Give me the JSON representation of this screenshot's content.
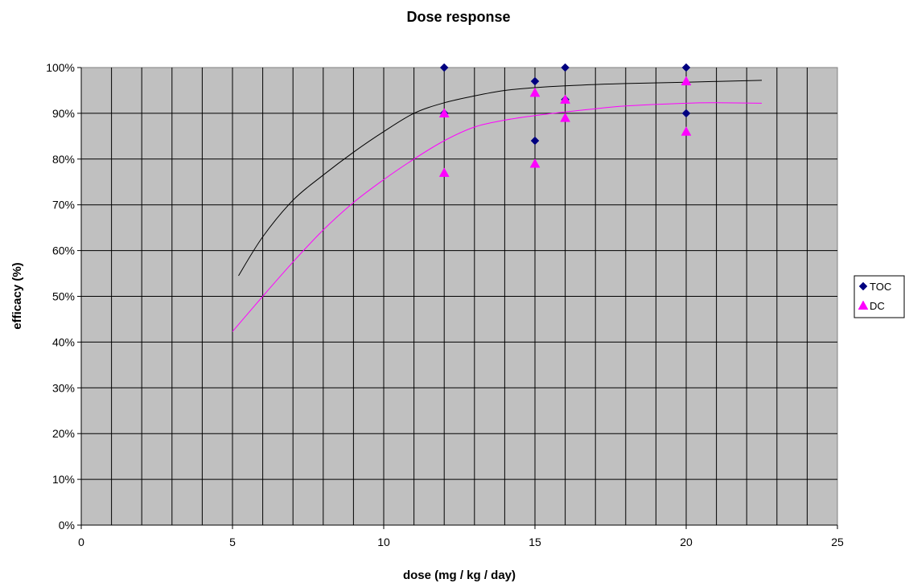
{
  "chart_data": {
    "type": "scatter",
    "title": "Dose response",
    "xlabel": "dose (mg / kg / day)",
    "ylabel": "efficacy (%)",
    "xlim": [
      0,
      25
    ],
    "ylim": [
      0,
      100
    ],
    "x_ticks": [
      0,
      5,
      10,
      15,
      20,
      25
    ],
    "y_ticks": [
      "0%",
      "10%",
      "20%",
      "30%",
      "40%",
      "50%",
      "60%",
      "70%",
      "80%",
      "90%",
      "100%"
    ],
    "grid": true,
    "legend_position": "right",
    "background_color": "#c0c0c0",
    "series": [
      {
        "name": "TOC",
        "marker": "diamond",
        "color": "#000080",
        "points": [
          {
            "x": 12,
            "y": 100
          },
          {
            "x": 12,
            "y": 90
          },
          {
            "x": 15,
            "y": 97
          },
          {
            "x": 15,
            "y": 84
          },
          {
            "x": 16,
            "y": 100
          },
          {
            "x": 16,
            "y": 93
          },
          {
            "x": 20,
            "y": 100
          },
          {
            "x": 20,
            "y": 90
          }
        ],
        "trend": {
          "color": "#000000",
          "points": [
            {
              "x": 5.2,
              "y": 54.5
            },
            {
              "x": 6,
              "y": 63
            },
            {
              "x": 7,
              "y": 71
            },
            {
              "x": 8,
              "y": 76.5
            },
            {
              "x": 9,
              "y": 81.5
            },
            {
              "x": 10,
              "y": 86
            },
            {
              "x": 11,
              "y": 90
            },
            {
              "x": 12,
              "y": 92.3
            },
            {
              "x": 13,
              "y": 93.8
            },
            {
              "x": 14,
              "y": 95
            },
            {
              "x": 15,
              "y": 95.6
            },
            {
              "x": 16,
              "y": 96
            },
            {
              "x": 17,
              "y": 96.3
            },
            {
              "x": 18,
              "y": 96.5
            },
            {
              "x": 20,
              "y": 96.8
            },
            {
              "x": 22.5,
              "y": 97.2
            }
          ]
        }
      },
      {
        "name": "DC",
        "marker": "triangle",
        "color": "#ff00ff",
        "points": [
          {
            "x": 12,
            "y": 90
          },
          {
            "x": 12,
            "y": 77
          },
          {
            "x": 15,
            "y": 94.5
          },
          {
            "x": 15,
            "y": 79
          },
          {
            "x": 16,
            "y": 93
          },
          {
            "x": 16,
            "y": 89
          },
          {
            "x": 20,
            "y": 97
          },
          {
            "x": 20,
            "y": 86
          }
        ],
        "trend": {
          "color": "#ff00ff",
          "points": [
            {
              "x": 5,
              "y": 42.3
            },
            {
              "x": 6,
              "y": 50
            },
            {
              "x": 7,
              "y": 57.5
            },
            {
              "x": 8,
              "y": 64.5
            },
            {
              "x": 9,
              "y": 70.5
            },
            {
              "x": 10,
              "y": 75.5
            },
            {
              "x": 11,
              "y": 80
            },
            {
              "x": 12,
              "y": 84
            },
            {
              "x": 13,
              "y": 87
            },
            {
              "x": 14,
              "y": 88.5
            },
            {
              "x": 15,
              "y": 89.5
            },
            {
              "x": 16,
              "y": 90.3
            },
            {
              "x": 17,
              "y": 91
            },
            {
              "x": 18,
              "y": 91.6
            },
            {
              "x": 20,
              "y": 92.2
            },
            {
              "x": 21,
              "y": 92.3
            },
            {
              "x": 22.5,
              "y": 92.2
            }
          ]
        }
      }
    ]
  }
}
